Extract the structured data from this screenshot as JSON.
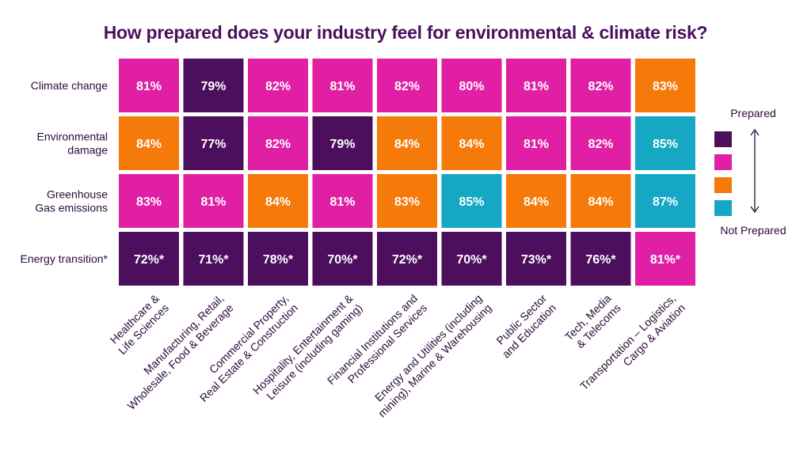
{
  "colors": {
    "title": "#4b0f5e",
    "purple": "#4b0f5e",
    "magenta": "#e01fa5",
    "orange": "#f57a0a",
    "teal": "#15a7c4",
    "text": "#2c0a3a"
  },
  "chart_data": {
    "type": "heatmap",
    "title": "How prepared does your industry feel for environmental & climate risk?",
    "rows": [
      "Climate change",
      "Environmental damage",
      "Greenhouse Gas emissions",
      "Energy transition*"
    ],
    "columns": [
      "Healthcare & Life Sciences",
      "Manufacturing, Retail, Wholesale, Food & Beverage",
      "Commercial Property, Real Estate & Construction",
      "Hospitality, Entertainment & Leisure (including gaming)",
      "Financial Institutions and Professional Services",
      "Energy and Utilities (including mining), Marine & Warehousing",
      "Public Sector and Education",
      "Tech, Media & Telecoms",
      "Transportation – Logistics, Cargo & Aviation"
    ],
    "labels": [
      [
        "81%",
        "79%",
        "82%",
        "81%",
        "82%",
        "80%",
        "81%",
        "82%",
        "83%"
      ],
      [
        "84%",
        "77%",
        "82%",
        "79%",
        "84%",
        "84%",
        "81%",
        "82%",
        "85%"
      ],
      [
        "83%",
        "81%",
        "84%",
        "81%",
        "83%",
        "85%",
        "84%",
        "84%",
        "87%"
      ],
      [
        "72%*",
        "71%*",
        "78%*",
        "70%*",
        "72%*",
        "70%*",
        "73%*",
        "76%*",
        "81%*"
      ]
    ],
    "values": [
      [
        81,
        79,
        82,
        81,
        82,
        80,
        81,
        82,
        83
      ],
      [
        84,
        77,
        82,
        79,
        84,
        84,
        81,
        82,
        85
      ],
      [
        83,
        81,
        84,
        81,
        83,
        85,
        84,
        84,
        87
      ],
      [
        72,
        71,
        78,
        70,
        72,
        70,
        73,
        76,
        81
      ]
    ],
    "cell_colors": [
      [
        "magenta",
        "purple",
        "magenta",
        "magenta",
        "magenta",
        "magenta",
        "magenta",
        "magenta",
        "orange"
      ],
      [
        "orange",
        "purple",
        "magenta",
        "purple",
        "orange",
        "orange",
        "magenta",
        "magenta",
        "teal"
      ],
      [
        "magenta",
        "magenta",
        "orange",
        "magenta",
        "orange",
        "teal",
        "orange",
        "orange",
        "teal"
      ],
      [
        "purple",
        "purple",
        "purple",
        "purple",
        "purple",
        "purple",
        "purple",
        "purple",
        "magenta"
      ]
    ],
    "legend": {
      "placement": "right",
      "top_label": "Prepared",
      "bottom_label": "Not Prepared",
      "swatches": [
        "purple",
        "magenta",
        "orange",
        "teal"
      ]
    }
  }
}
